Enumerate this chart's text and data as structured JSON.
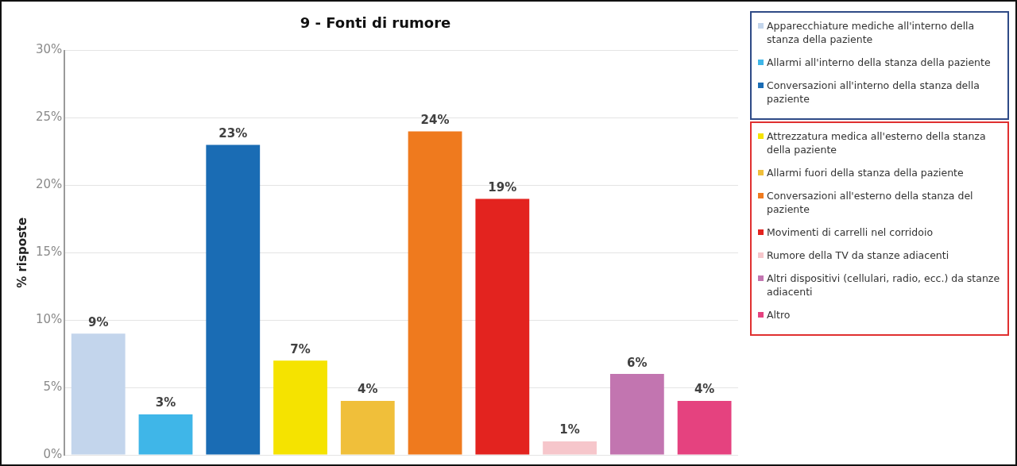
{
  "chart_data": {
    "type": "bar",
    "title": "9 - Fonti di rumore",
    "ylabel": "% risposte",
    "categories": [
      null,
      null,
      null,
      null,
      null,
      null,
      null,
      null,
      null,
      null
    ],
    "series": [
      {
        "name": "Apparecchiature mediche all'interno della stanza della paziente",
        "color": "#c3d5ec",
        "values": [
          9,
          null,
          null,
          null,
          null,
          null,
          null,
          null,
          null,
          null
        ],
        "value_labels": [
          "9%",
          null,
          null,
          null,
          null,
          null,
          null,
          null,
          null,
          null
        ]
      },
      {
        "name": "Allarmi all'interno della stanza della paziente",
        "color": "#3fb6e8",
        "values": [
          null,
          3,
          null,
          null,
          null,
          null,
          null,
          null,
          null,
          null
        ],
        "value_labels": [
          null,
          "3%",
          null,
          null,
          null,
          null,
          null,
          null,
          null,
          null
        ]
      },
      {
        "name": "Conversazioni all'interno della stanza della paziente",
        "color": "#1a6cb4",
        "values": [
          null,
          null,
          23,
          null,
          null,
          null,
          null,
          null,
          null,
          null
        ],
        "value_labels": [
          null,
          null,
          "23%",
          null,
          null,
          null,
          null,
          null,
          null,
          null
        ]
      },
      {
        "name": "Attrezzatura medica all'esterno della stanza della paziente",
        "color": "#f5e300",
        "values": [
          null,
          null,
          null,
          7,
          null,
          null,
          null,
          null,
          null,
          null
        ],
        "value_labels": [
          null,
          null,
          null,
          "7%",
          null,
          null,
          null,
          null,
          null,
          null
        ]
      },
      {
        "name": "Allarmi fuori della stanza della paziente",
        "color": "#f0bf3a",
        "values": [
          null,
          null,
          null,
          null,
          4,
          null,
          null,
          null,
          null,
          null
        ],
        "value_labels": [
          null,
          null,
          null,
          null,
          "4%",
          null,
          null,
          null,
          null,
          null
        ]
      },
      {
        "name": "Conversazioni all'esterno della stanza del paziente",
        "color": "#ef7a1e",
        "values": [
          null,
          null,
          null,
          null,
          null,
          24,
          null,
          null,
          null,
          null
        ],
        "value_labels": [
          null,
          null,
          null,
          null,
          null,
          "24%",
          null,
          null,
          null,
          null
        ]
      },
      {
        "name": "Movimenti di carrelli nel corridoio",
        "color": "#e3231f",
        "values": [
          null,
          null,
          null,
          null,
          null,
          null,
          19,
          null,
          null,
          null
        ],
        "value_labels": [
          null,
          null,
          null,
          null,
          null,
          null,
          "19%",
          null,
          null,
          null
        ]
      },
      {
        "name": "Rumore della TV da stanze adiacenti",
        "color": "#f6c6cb",
        "values": [
          null,
          null,
          null,
          null,
          null,
          null,
          null,
          1,
          null,
          null
        ],
        "value_labels": [
          null,
          null,
          null,
          null,
          null,
          null,
          null,
          "1%",
          null,
          null
        ]
      },
      {
        "name": "Altri dispositivi (cellulari, radio, ecc.) da stanze adiacenti",
        "color": "#c275b0",
        "values": [
          null,
          null,
          null,
          null,
          null,
          null,
          null,
          null,
          6,
          null
        ],
        "value_labels": [
          null,
          null,
          null,
          null,
          null,
          null,
          null,
          null,
          "6%",
          null
        ]
      },
      {
        "name": "Altro",
        "color": "#e5427f",
        "values": [
          null,
          null,
          null,
          null,
          null,
          null,
          null,
          null,
          null,
          4
        ],
        "value_labels": [
          null,
          null,
          null,
          null,
          null,
          null,
          null,
          null,
          null,
          "4%"
        ]
      }
    ],
    "ylim": [
      0,
      30
    ],
    "yticks": [
      {
        "value": 0,
        "label": "0%"
      },
      {
        "value": 5,
        "label": "5%"
      },
      {
        "value": 10,
        "label": "10%"
      },
      {
        "value": 15,
        "label": "15%"
      },
      {
        "value": 20,
        "label": "20%"
      },
      {
        "value": 25,
        "label": "25%"
      },
      {
        "value": 30,
        "label": "30%"
      }
    ],
    "grid": "y",
    "legend": "right"
  }
}
